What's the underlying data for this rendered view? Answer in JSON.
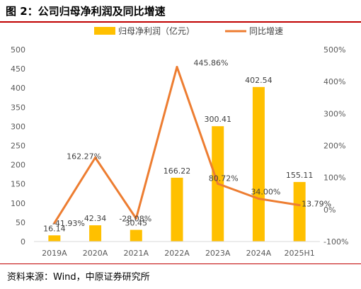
{
  "header": {
    "title": "图 2：公司归母净利润及同比增速"
  },
  "footer": {
    "source": "资料来源：Wind，中原证券研究所"
  },
  "chart_data": {
    "type": "bar",
    "categories": [
      "2019A",
      "2020A",
      "2021A",
      "2022A",
      "2023A",
      "2024A",
      "2025H1"
    ],
    "series": [
      {
        "name": "归母净利润（亿元）",
        "type": "bar",
        "axis": "left",
        "values": [
          16.14,
          42.34,
          30.45,
          166.22,
          300.41,
          402.54,
          155.11
        ],
        "labels": [
          "16.14",
          "42.34",
          "30.45",
          "166.22",
          "300.41",
          "402.54",
          "155.11"
        ],
        "color": "#ffc000"
      },
      {
        "name": "同比增速",
        "type": "line",
        "axis": "right",
        "values": [
          -41.93,
          162.27,
          -28.08,
          445.86,
          80.72,
          34.0,
          13.79
        ],
        "labels": [
          "-41.93%",
          "162.27%",
          "-28.08%",
          "445.86%",
          "80.72%",
          "34.00%",
          "13.79%"
        ],
        "color": "#ed7d31"
      }
    ],
    "y_left": {
      "min": 0,
      "max": 500,
      "ticks": [
        "0",
        "50",
        "100",
        "150",
        "200",
        "250",
        "300",
        "350",
        "400",
        "450",
        "500"
      ]
    },
    "y_right": {
      "min": -100,
      "max": 500,
      "ticks": [
        "-100%",
        "0%",
        "100%",
        "200%",
        "300%",
        "400%",
        "500%"
      ]
    },
    "grid": false,
    "legend_position": "top"
  }
}
